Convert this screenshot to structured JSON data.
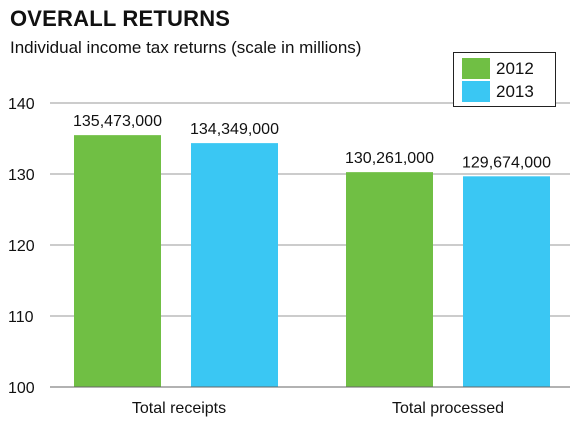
{
  "chart_data": {
    "type": "bar",
    "title": "OVERALL RETURNS",
    "subtitle": "Individual income tax returns (scale in millions)",
    "categories": [
      "Total receipts",
      "Total processed"
    ],
    "series": [
      {
        "name": "2012",
        "color": "#70bf44",
        "values": [
          135.473,
          130.261
        ],
        "labels": [
          "135,473,000",
          "130,261,000"
        ]
      },
      {
        "name": "2013",
        "color": "#3ac7f3",
        "values": [
          134.349,
          129.674
        ],
        "labels": [
          "134,349,000",
          "129,674,000"
        ]
      }
    ],
    "ylim": [
      100,
      140
    ],
    "yticks": [
      "100",
      "110",
      "120",
      "130",
      "140"
    ],
    "grid": true,
    "legend_position": "top-right"
  }
}
